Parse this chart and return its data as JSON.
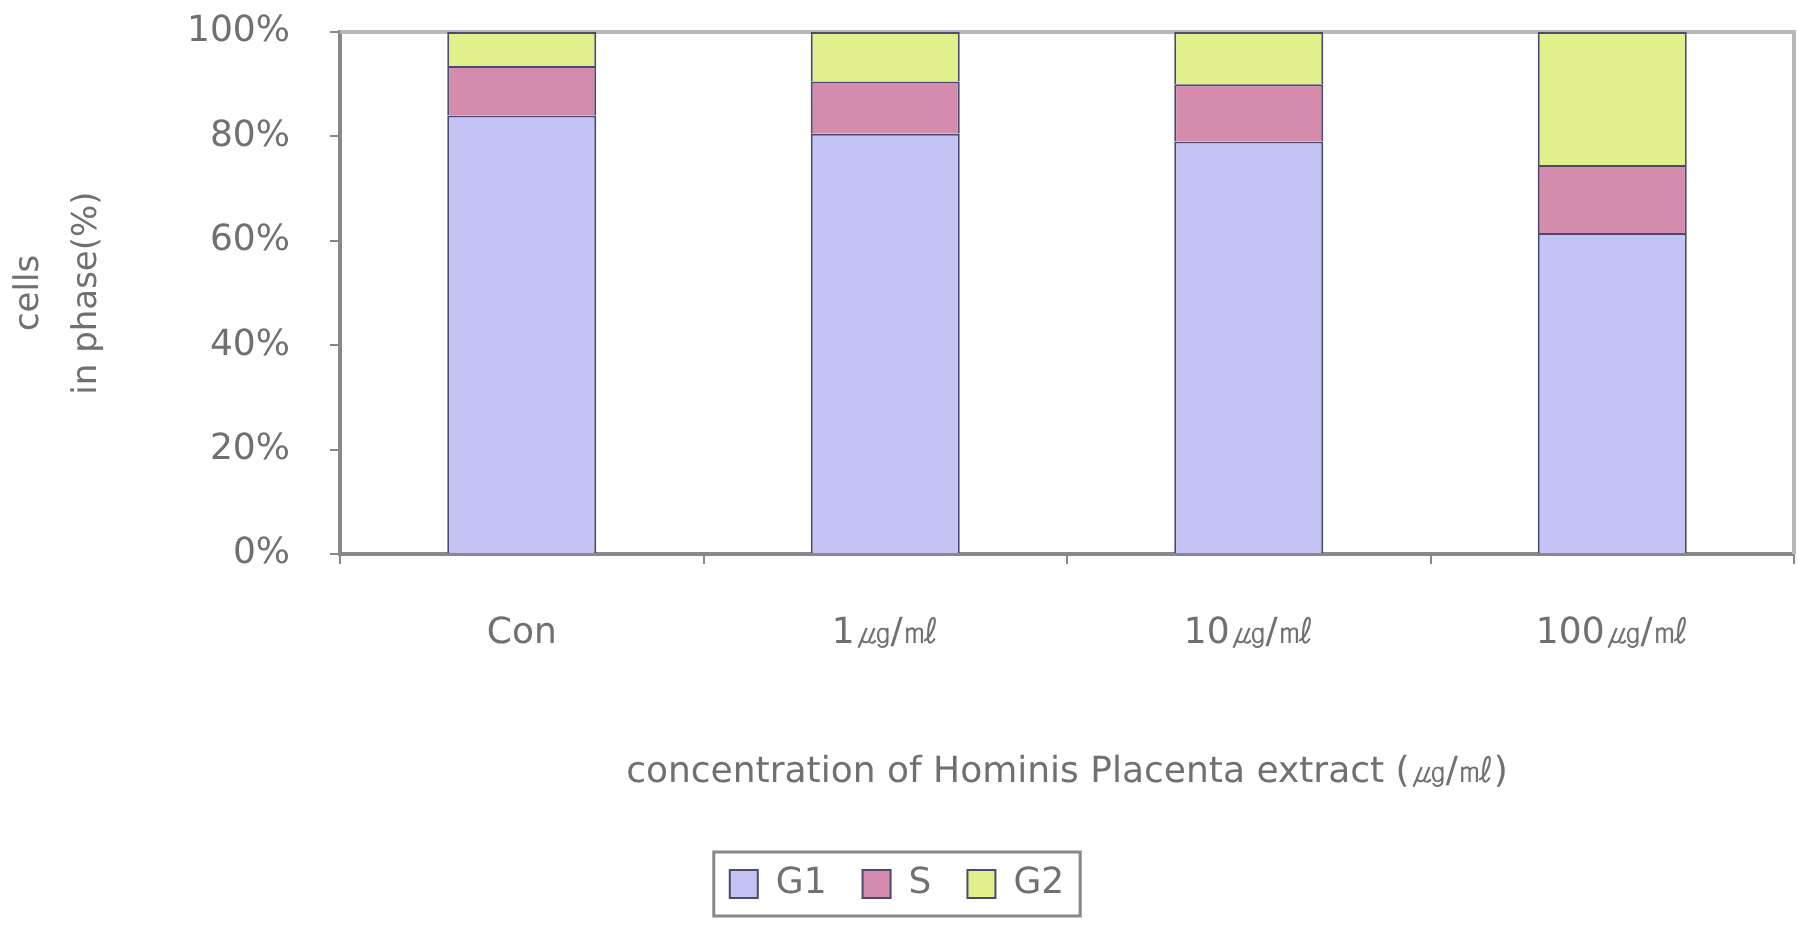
{
  "chart_data": {
    "type": "bar",
    "stacked": true,
    "categories": [
      "Con",
      "1㎍/㎖",
      "10㎍/㎖",
      "100㎍/㎖"
    ],
    "series": [
      {
        "name": "G1",
        "color": "#c4c4f4",
        "values": [
          84,
          80.5,
          79,
          61.5
        ]
      },
      {
        "name": "S",
        "color": "#d58cac",
        "values": [
          9.5,
          10,
          11,
          13
        ]
      },
      {
        "name": "G2",
        "color": "#e2f08c",
        "values": [
          6.5,
          9.5,
          10,
          25.5
        ]
      }
    ],
    "ylim": [
      0,
      100
    ],
    "yticks": [
      {
        "value": 0,
        "label": "0%"
      },
      {
        "value": 20,
        "label": "20%"
      },
      {
        "value": 40,
        "label": "40%"
      },
      {
        "value": 60,
        "label": "60%"
      },
      {
        "value": 80,
        "label": "80%"
      },
      {
        "value": 100,
        "label": "100%"
      }
    ],
    "ylabel": "cells\nin phase(%)",
    "xlabel": "concentration of Hominis Placenta extract (㎍/㎖)",
    "legend": "bottom",
    "grid": false
  }
}
